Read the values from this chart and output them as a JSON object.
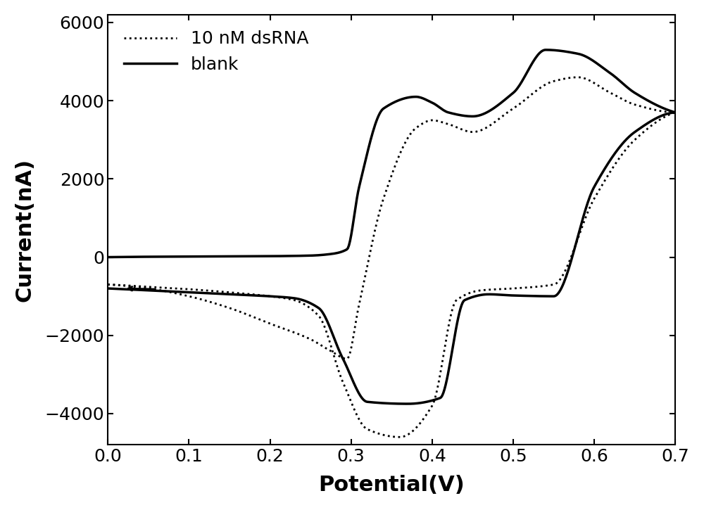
{
  "title": "",
  "xlabel": "Potential(V)",
  "ylabel": "Current(nA)",
  "xlim": [
    0.0,
    0.7
  ],
  "ylim": [
    -4800,
    6200
  ],
  "xticks": [
    0.0,
    0.1,
    0.2,
    0.3,
    0.4,
    0.5,
    0.6,
    0.7
  ],
  "yticks": [
    -4000,
    -2000,
    0,
    2000,
    4000,
    6000
  ],
  "xlabel_fontsize": 22,
  "ylabel_fontsize": 22,
  "tick_fontsize": 18,
  "legend_fontsize": 18,
  "line_color": "#000000",
  "background_color": "#ffffff",
  "legend_labels": [
    "10 nM dsRNA",
    "blank"
  ]
}
